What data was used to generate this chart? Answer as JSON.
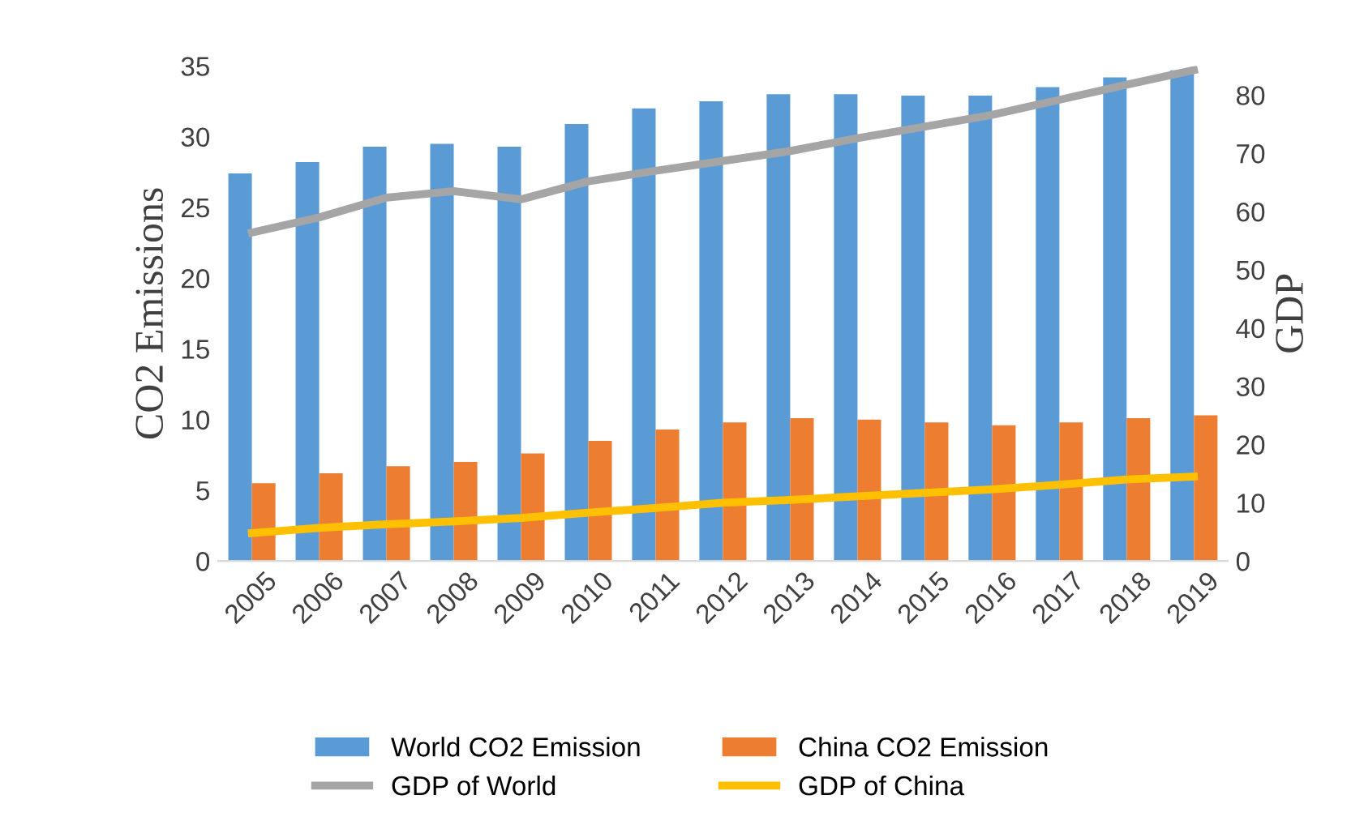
{
  "chart_data": {
    "type": "bar",
    "categories": [
      "2005",
      "2006",
      "2007",
      "2008",
      "2009",
      "2010",
      "2011",
      "2012",
      "2013",
      "2014",
      "2015",
      "2016",
      "2017",
      "2018",
      "2019"
    ],
    "ylabel": "CO2 Emissions",
    "y2label": "GDP",
    "ylim": [
      0,
      35
    ],
    "yticks": [
      0,
      5,
      10,
      15,
      20,
      25,
      30,
      35
    ],
    "y2lim": [
      0,
      85
    ],
    "y2ticks": [
      0,
      10,
      20,
      30,
      40,
      50,
      60,
      70,
      80
    ],
    "grid": false,
    "legend": "bottom",
    "marker": "none",
    "line_style": "solid",
    "series": [
      {
        "name": "World CO2 Emission",
        "color": "#5b9bd5",
        "values": [
          27.4,
          28.2,
          29.3,
          29.5,
          29.3,
          30.9,
          32.0,
          32.5,
          33.0,
          33.0,
          32.9,
          32.9,
          33.5,
          34.2,
          34.7
        ]
      },
      {
        "name": "China CO2 Emission",
        "color": "#ed7d31",
        "values": [
          5.5,
          6.2,
          6.7,
          7.0,
          7.6,
          8.5,
          9.3,
          9.8,
          10.1,
          10.0,
          9.8,
          9.6,
          9.8,
          10.1,
          10.3
        ]
      },
      {
        "name": "GDP of World",
        "type": "line",
        "axis": "y2",
        "color": "#a5a5a5",
        "values": [
          56.4,
          59.0,
          62.4,
          63.5,
          62.1,
          65.2,
          67.0,
          68.7,
          70.4,
          72.6,
          74.6,
          76.6,
          79.2,
          81.8,
          84.3
        ]
      },
      {
        "name": "GDP of China",
        "type": "line",
        "axis": "y2",
        "color": "#ffc000",
        "values": [
          4.8,
          5.7,
          6.3,
          6.8,
          7.4,
          8.3,
          9.1,
          10.0,
          10.5,
          11.1,
          11.7,
          12.3,
          13.1,
          14.0,
          14.5
        ]
      }
    ]
  }
}
